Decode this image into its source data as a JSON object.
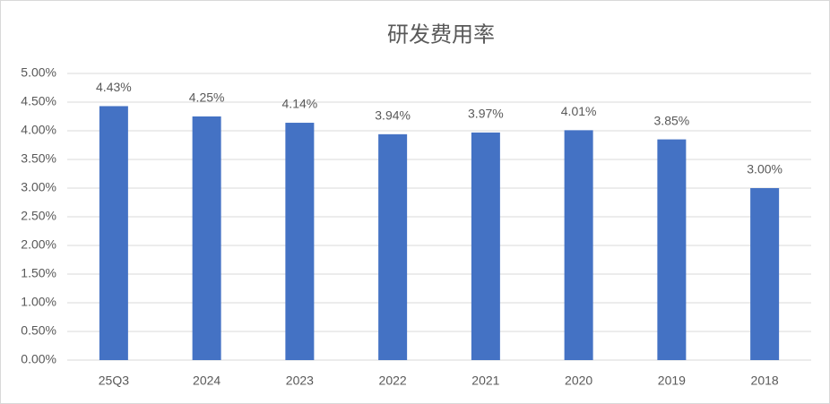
{
  "chart_data": {
    "type": "bar",
    "title": "研发费用率",
    "categories": [
      "25Q3",
      "2024",
      "2023",
      "2022",
      "2021",
      "2020",
      "2019",
      "2018"
    ],
    "values": [
      4.43,
      4.25,
      4.14,
      3.94,
      3.97,
      4.01,
      3.85,
      3.0
    ],
    "value_labels": [
      "4.43%",
      "4.25%",
      "4.14%",
      "3.94%",
      "3.97%",
      "4.01%",
      "3.85%",
      "3.00%"
    ],
    "color": "#4472c4",
    "ylim": [
      0,
      5
    ],
    "yticks": [
      {
        "value": 0,
        "label": "0.00%"
      },
      {
        "value": 0.5,
        "label": "0.50%"
      },
      {
        "value": 1,
        "label": "1.00%"
      },
      {
        "value": 1.5,
        "label": "1.50%"
      },
      {
        "value": 2,
        "label": "2.00%"
      },
      {
        "value": 2.5,
        "label": "2.50%"
      },
      {
        "value": 3,
        "label": "3.00%"
      },
      {
        "value": 3.5,
        "label": "3.50%"
      },
      {
        "value": 4,
        "label": "4.00%"
      },
      {
        "value": 4.5,
        "label": "4.50%"
      },
      {
        "value": 5,
        "label": "5.00%"
      }
    ],
    "grid": true
  }
}
